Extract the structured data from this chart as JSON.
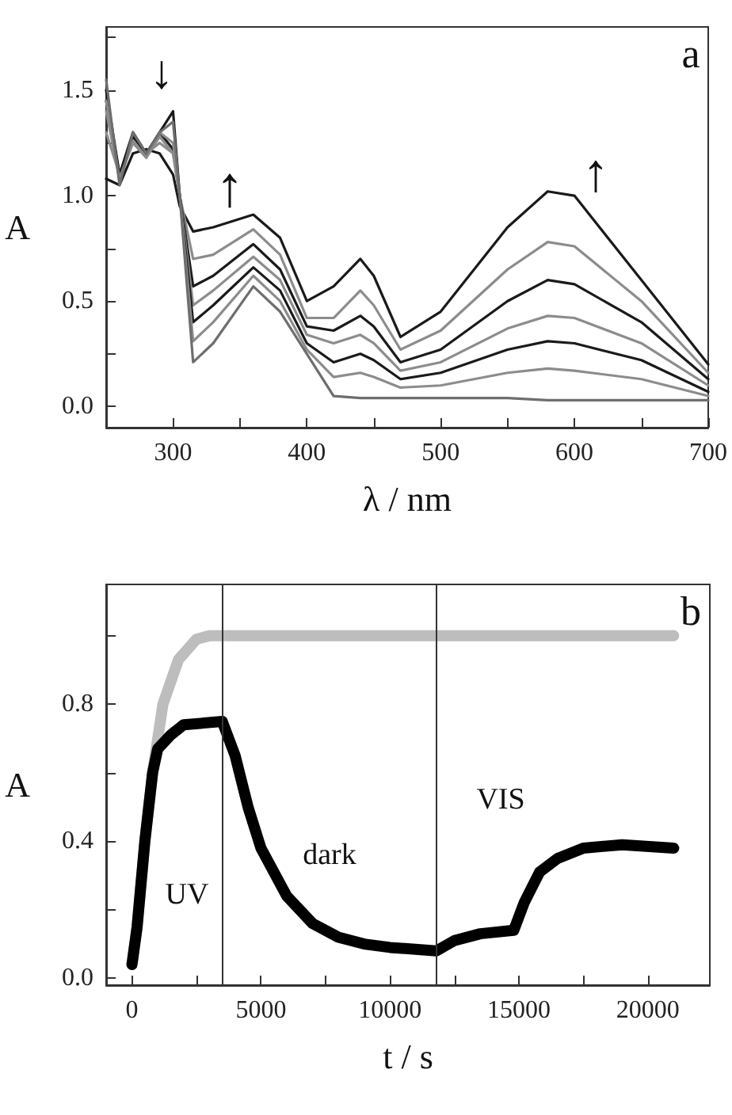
{
  "chart_data": [
    {
      "type": "line",
      "xlabel": "λ / nm",
      "ylabel": "A",
      "x": [
        250,
        260,
        270,
        280,
        290,
        300,
        305,
        315,
        330,
        360,
        380,
        400,
        420,
        440,
        450,
        470,
        500,
        550,
        580,
        600,
        650,
        700
      ],
      "series": [
        {
          "color": "#1a1a1a",
          "values": [
            1.08,
            1.05,
            1.2,
            1.22,
            1.2,
            1.1,
            0.95,
            0.83,
            0.85,
            0.91,
            0.8,
            0.5,
            0.57,
            0.7,
            0.62,
            0.33,
            0.45,
            0.85,
            1.02,
            1.0,
            0.6,
            0.2
          ]
        },
        {
          "color": "#8c8c8c",
          "values": [
            1.3,
            1.1,
            1.25,
            1.2,
            1.25,
            1.2,
            1.0,
            0.7,
            0.72,
            0.84,
            0.72,
            0.42,
            0.42,
            0.55,
            0.48,
            0.27,
            0.36,
            0.65,
            0.78,
            0.76,
            0.5,
            0.16
          ]
        },
        {
          "color": "#1a1a1a",
          "values": [
            1.45,
            1.1,
            1.28,
            1.2,
            1.3,
            1.22,
            1.0,
            0.57,
            0.62,
            0.77,
            0.65,
            0.38,
            0.36,
            0.43,
            0.38,
            0.21,
            0.27,
            0.5,
            0.6,
            0.58,
            0.4,
            0.13
          ]
        },
        {
          "color": "#8c8c8c",
          "values": [
            1.4,
            1.08,
            1.25,
            1.18,
            1.28,
            1.2,
            1.0,
            0.48,
            0.55,
            0.71,
            0.6,
            0.34,
            0.3,
            0.34,
            0.3,
            0.17,
            0.21,
            0.37,
            0.43,
            0.42,
            0.3,
            0.1
          ]
        },
        {
          "color": "#1a1a1a",
          "values": [
            1.5,
            1.1,
            1.3,
            1.2,
            1.3,
            1.4,
            1.0,
            0.4,
            0.48,
            0.66,
            0.55,
            0.3,
            0.21,
            0.25,
            0.22,
            0.13,
            0.16,
            0.27,
            0.31,
            0.3,
            0.22,
            0.07
          ]
        },
        {
          "color": "#8c8c8c",
          "values": [
            1.45,
            1.08,
            1.26,
            1.18,
            1.3,
            1.25,
            1.0,
            0.31,
            0.4,
            0.62,
            0.5,
            0.27,
            0.14,
            0.16,
            0.14,
            0.09,
            0.1,
            0.16,
            0.18,
            0.17,
            0.13,
            0.05
          ]
        },
        {
          "color": "#6e6e6e",
          "values": [
            1.55,
            1.05,
            1.3,
            1.2,
            1.3,
            1.35,
            1.0,
            0.21,
            0.3,
            0.57,
            0.45,
            0.25,
            0.05,
            0.04,
            0.04,
            0.04,
            0.04,
            0.04,
            0.03,
            0.03,
            0.03,
            0.03
          ]
        }
      ],
      "xlim": [
        250,
        700
      ],
      "xticks": [
        300,
        {
          "value": 350,
          "label": null
        },
        400,
        {
          "value": 450,
          "label": null
        },
        500,
        {
          "value": 550,
          "label": null
        },
        600,
        {
          "value": 650,
          "label": null
        },
        700
      ],
      "ylim": [
        -0.1,
        1.8
      ],
      "yticks": [
        {
          "value": 0,
          "label": "0.0"
        },
        {
          "value": 0.25,
          "label": null
        },
        0.5,
        {
          "value": 0.75,
          "label": null
        },
        {
          "value": 1,
          "label": "1.0"
        },
        {
          "value": 1.25,
          "label": null
        },
        1.5,
        {
          "value": 1.75,
          "label": null
        }
      ],
      "line_style": "solid",
      "grid": false,
      "annotations": [
        "a",
        "↓",
        "↑",
        "↑"
      ]
    },
    {
      "type": "line",
      "xlabel": "t / s",
      "ylabel": "A",
      "series": [
        {
          "color": "#bdbdbd",
          "x": [
            0,
            200,
            500,
            800,
            1200,
            1800,
            2500,
            3000,
            5000,
            10000,
            15000,
            21000
          ],
          "values": [
            0.04,
            0.15,
            0.4,
            0.6,
            0.8,
            0.93,
            0.99,
            1.0,
            1.0,
            1.0,
            1.0,
            1.0
          ]
        },
        {
          "color": "#000000",
          "x": [
            0,
            200,
            500,
            800,
            1000,
            1500,
            2000,
            3500,
            4000,
            4500,
            5000,
            6000,
            7000,
            8000,
            9000,
            10000,
            11800,
            12500,
            13500,
            14800,
            15200,
            15800,
            16500,
            17500,
            19000,
            21000
          ],
          "values": [
            0.04,
            0.15,
            0.4,
            0.6,
            0.67,
            0.71,
            0.74,
            0.75,
            0.65,
            0.5,
            0.38,
            0.24,
            0.16,
            0.12,
            0.1,
            0.09,
            0.08,
            0.11,
            0.13,
            0.14,
            0.22,
            0.31,
            0.35,
            0.38,
            0.39,
            0.38
          ]
        }
      ],
      "xlim": [
        -1000,
        22400
      ],
      "xticks": [
        0,
        {
          "value": 2500,
          "label": null
        },
        5000,
        {
          "value": 7500,
          "label": null
        },
        10000,
        {
          "value": 12500,
          "label": null
        },
        15000,
        {
          "value": 17500,
          "label": null
        },
        20000
      ],
      "ylim": [
        -0.02,
        1.15
      ],
      "yticks": [
        {
          "value": 0,
          "label": "0.0"
        },
        {
          "value": 0.2,
          "label": null
        },
        0.4,
        {
          "value": 0.6,
          "label": null
        },
        0.8,
        {
          "value": 1,
          "label": null
        }
      ],
      "ref_lines": [
        {
          "axis": "x",
          "value": 3500,
          "label": null
        },
        {
          "axis": "x",
          "value": 11800,
          "label": null
        }
      ],
      "line_style": "solid",
      "grid": false,
      "annotations": [
        "b",
        "UV",
        "dark",
        "VIS"
      ]
    }
  ]
}
